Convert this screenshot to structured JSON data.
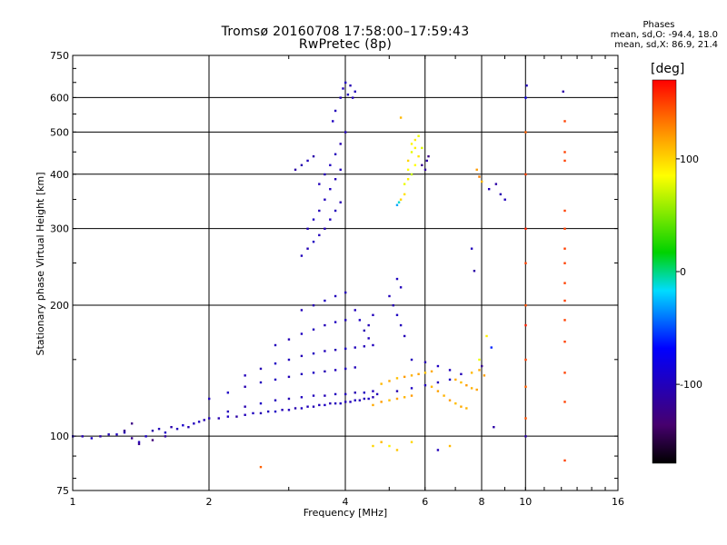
{
  "header": {
    "title_line1": "Tromsø 20160708 17:58:00–17:59:43",
    "title_line2": "RwPretec (8p)"
  },
  "phases": {
    "heading": "Phases",
    "o_line": "mean, sd,O: -94.4, 18.0",
    "x_line": "mean, sd,X:  86.9, 21.4"
  },
  "colorbar": {
    "title": "[deg]",
    "ticks": [
      "100",
      "0",
      "-100"
    ]
  },
  "colors": {
    "grid": "#000000",
    "axis": "#000000"
  },
  "chart_data": {
    "type": "scatter",
    "title": "Tromsø 20160708 17:58:00–17:59:43",
    "subtitle": "RwPretec (8p)",
    "xlabel": "Frequency [MHz]",
    "ylabel": "Stationary phase Virtual Height [km]",
    "xscale": "log",
    "yscale": "log",
    "xlim": [
      1,
      16
    ],
    "ylim": [
      75,
      750
    ],
    "xticks": [
      1,
      2,
      4,
      6,
      8,
      10,
      16
    ],
    "yticks": [
      75,
      100,
      200,
      300,
      400,
      500,
      600,
      750
    ],
    "grid": true,
    "colorbar_range": [
      -170,
      170
    ],
    "points": [
      [
        1.0,
        100,
        -100
      ],
      [
        1.05,
        100,
        -105
      ],
      [
        1.1,
        99,
        -95
      ],
      [
        1.15,
        100,
        -110
      ],
      [
        1.2,
        101,
        -100
      ],
      [
        1.25,
        101,
        -98
      ],
      [
        1.3,
        102,
        -105
      ],
      [
        1.35,
        99,
        -120
      ],
      [
        1.4,
        97,
        -100
      ],
      [
        1.45,
        100,
        -95
      ],
      [
        1.5,
        103,
        -110
      ],
      [
        1.55,
        104,
        -100
      ],
      [
        1.6,
        102,
        -95
      ],
      [
        1.65,
        105,
        -108
      ],
      [
        1.7,
        104,
        -100
      ],
      [
        1.75,
        106,
        -92
      ],
      [
        1.8,
        105,
        -105
      ],
      [
        1.85,
        107,
        -100
      ],
      [
        1.9,
        108,
        -97
      ],
      [
        1.95,
        109,
        -103
      ],
      [
        2.0,
        110,
        -100
      ],
      [
        2.1,
        110,
        -105
      ],
      [
        2.2,
        111,
        -95
      ],
      [
        2.3,
        111,
        -110
      ],
      [
        2.4,
        112,
        -100
      ],
      [
        2.5,
        113,
        -98
      ],
      [
        2.6,
        113,
        -104
      ],
      [
        2.7,
        114,
        -100
      ],
      [
        2.8,
        114,
        -96
      ],
      [
        2.9,
        115,
        -102
      ],
      [
        3.0,
        115,
        -100
      ],
      [
        3.1,
        116,
        -105
      ],
      [
        3.2,
        116,
        -98
      ],
      [
        3.3,
        117,
        -100
      ],
      [
        3.4,
        117,
        -103
      ],
      [
        3.5,
        118,
        -100
      ],
      [
        3.6,
        118,
        -96
      ],
      [
        3.7,
        119,
        -104
      ],
      [
        3.8,
        119,
        -100
      ],
      [
        3.9,
        119,
        -98
      ],
      [
        4.0,
        120,
        -102
      ],
      [
        4.1,
        120,
        -100
      ],
      [
        4.2,
        121,
        -97
      ],
      [
        4.3,
        121,
        -103
      ],
      [
        4.4,
        122,
        -100
      ],
      [
        4.5,
        122,
        -96
      ],
      [
        4.6,
        123,
        -105
      ],
      [
        2.2,
        114,
        -100
      ],
      [
        2.4,
        117,
        -105
      ],
      [
        2.6,
        119,
        -95
      ],
      [
        2.8,
        121,
        -100
      ],
      [
        3.0,
        122,
        -103
      ],
      [
        3.2,
        123,
        -98
      ],
      [
        3.4,
        124,
        -100
      ],
      [
        3.6,
        124,
        -102
      ],
      [
        3.8,
        125,
        -99
      ],
      [
        4.0,
        125,
        -100
      ],
      [
        4.2,
        126,
        -104
      ],
      [
        4.4,
        126,
        -97
      ],
      [
        4.6,
        127,
        -100
      ],
      [
        2.0,
        122,
        -100
      ],
      [
        2.2,
        126,
        -95
      ],
      [
        2.4,
        130,
        -105
      ],
      [
        2.6,
        133,
        -100
      ],
      [
        2.8,
        135,
        -98
      ],
      [
        3.0,
        137,
        -102
      ],
      [
        3.2,
        139,
        -100
      ],
      [
        3.4,
        140,
        -96
      ],
      [
        3.6,
        141,
        -103
      ],
      [
        3.8,
        142,
        -100
      ],
      [
        4.0,
        143,
        -99
      ],
      [
        4.2,
        144,
        -101
      ],
      [
        2.4,
        138,
        -100
      ],
      [
        2.6,
        143,
        -104
      ],
      [
        2.8,
        147,
        -96
      ],
      [
        3.0,
        150,
        -100
      ],
      [
        3.2,
        153,
        -102
      ],
      [
        3.4,
        155,
        -98
      ],
      [
        3.6,
        157,
        -100
      ],
      [
        3.8,
        158,
        -103
      ],
      [
        4.0,
        159,
        -97
      ],
      [
        4.2,
        160,
        -100
      ],
      [
        4.4,
        161,
        -101
      ],
      [
        2.8,
        162,
        -100
      ],
      [
        3.0,
        167,
        -103
      ],
      [
        3.2,
        172,
        -97
      ],
      [
        3.4,
        176,
        -100
      ],
      [
        3.6,
        180,
        -102
      ],
      [
        3.8,
        183,
        -98
      ],
      [
        4.0,
        185,
        -100
      ],
      [
        3.2,
        195,
        -100
      ],
      [
        3.4,
        200,
        -104
      ],
      [
        3.6,
        205,
        -97
      ],
      [
        3.8,
        210,
        -100
      ],
      [
        4.0,
        214,
        -102
      ],
      [
        3.2,
        260,
        -100
      ],
      [
        3.3,
        270,
        -103
      ],
      [
        3.4,
        280,
        -97
      ],
      [
        3.5,
        290,
        -100
      ],
      [
        3.6,
        300,
        -102
      ],
      [
        3.7,
        315,
        -98
      ],
      [
        3.8,
        330,
        -100
      ],
      [
        3.9,
        345,
        -104
      ],
      [
        3.3,
        300,
        -100
      ],
      [
        3.4,
        315,
        -96
      ],
      [
        3.5,
        330,
        -102
      ],
      [
        3.6,
        350,
        -100
      ],
      [
        3.7,
        370,
        -98
      ],
      [
        3.8,
        390,
        -103
      ],
      [
        3.9,
        410,
        -100
      ],
      [
        3.5,
        380,
        -100
      ],
      [
        3.6,
        400,
        -102
      ],
      [
        3.7,
        420,
        -98
      ],
      [
        3.8,
        445,
        -100
      ],
      [
        3.9,
        470,
        -104
      ],
      [
        4.0,
        500,
        -100
      ],
      [
        3.75,
        530,
        -97
      ],
      [
        3.8,
        560,
        -100
      ],
      [
        3.9,
        600,
        -102
      ],
      [
        3.95,
        630,
        -100
      ],
      [
        4.0,
        650,
        -98
      ],
      [
        4.1,
        640,
        -103
      ],
      [
        4.2,
        620,
        -100
      ],
      [
        4.15,
        600,
        -100
      ],
      [
        4.05,
        610,
        -99
      ],
      [
        3.1,
        410,
        -110
      ],
      [
        3.2,
        420,
        -105
      ],
      [
        3.3,
        430,
        -100
      ],
      [
        3.4,
        440,
        -108
      ],
      [
        4.2,
        195,
        -100
      ],
      [
        4.3,
        185,
        -96
      ],
      [
        4.4,
        175,
        -104
      ],
      [
        4.5,
        168,
        -100
      ],
      [
        4.6,
        162,
        -98
      ],
      [
        4.5,
        180,
        -102
      ],
      [
        4.6,
        190,
        -100
      ],
      [
        5.0,
        210,
        -100
      ],
      [
        5.1,
        200,
        -104
      ],
      [
        5.2,
        190,
        -96
      ],
      [
        5.3,
        180,
        -100
      ],
      [
        5.4,
        170,
        -102
      ],
      [
        5.2,
        230,
        -98
      ],
      [
        5.3,
        220,
        -100
      ],
      [
        4.8,
        132,
        110
      ],
      [
        5.0,
        134,
        115
      ],
      [
        5.2,
        136,
        108
      ],
      [
        5.4,
        137,
        120
      ],
      [
        5.6,
        138,
        112
      ],
      [
        5.8,
        139,
        118
      ],
      [
        6.0,
        140,
        105
      ],
      [
        6.2,
        141,
        115
      ],
      [
        4.6,
        118,
        115
      ],
      [
        4.8,
        120,
        120
      ],
      [
        5.0,
        121,
        108
      ],
      [
        5.2,
        122,
        118
      ],
      [
        5.4,
        123,
        112
      ],
      [
        5.6,
        124,
        120
      ],
      [
        6.2,
        130,
        110
      ],
      [
        6.4,
        127,
        118
      ],
      [
        6.6,
        124,
        112
      ],
      [
        6.8,
        121,
        120
      ],
      [
        7.0,
        119,
        108
      ],
      [
        7.2,
        117,
        115
      ],
      [
        7.4,
        116,
        112
      ],
      [
        7.0,
        135,
        115
      ],
      [
        7.2,
        133,
        108
      ],
      [
        7.4,
        131,
        120
      ],
      [
        7.6,
        129,
        112
      ],
      [
        7.8,
        128,
        118
      ],
      [
        7.6,
        140,
        110
      ],
      [
        7.9,
        142,
        115
      ],
      [
        8.1,
        138,
        120
      ],
      [
        4.7,
        125,
        -100
      ],
      [
        5.2,
        127,
        -104
      ],
      [
        5.6,
        129,
        -96
      ],
      [
        6.0,
        131,
        -100
      ],
      [
        6.4,
        133,
        -102
      ],
      [
        6.8,
        135,
        -98
      ],
      [
        5.6,
        150,
        -100
      ],
      [
        6.0,
        148,
        -104
      ],
      [
        6.4,
        145,
        -96
      ],
      [
        6.8,
        142,
        -100
      ],
      [
        7.2,
        139,
        -102
      ],
      [
        5.4,
        380,
        80
      ],
      [
        5.5,
        390,
        90
      ],
      [
        5.6,
        400,
        70
      ],
      [
        5.7,
        420,
        85
      ],
      [
        5.8,
        440,
        95
      ],
      [
        5.9,
        460,
        75
      ],
      [
        5.6,
        470,
        88
      ],
      [
        5.7,
        480,
        92
      ],
      [
        5.8,
        490,
        80
      ],
      [
        5.5,
        430,
        100
      ],
      [
        5.6,
        450,
        78
      ],
      [
        5.7,
        460,
        90
      ],
      [
        5.5,
        410,
        85
      ],
      [
        5.4,
        360,
        95
      ],
      [
        5.3,
        350,
        100
      ],
      [
        5.2,
        340,
        -30
      ],
      [
        5.25,
        345,
        -10
      ],
      [
        5.3,
        540,
        110
      ],
      [
        5.9,
        420,
        -120
      ],
      [
        6.0,
        410,
        -115
      ],
      [
        6.05,
        430,
        -110
      ],
      [
        6.1,
        440,
        -125
      ],
      [
        7.8,
        410,
        120
      ],
      [
        7.9,
        395,
        130
      ],
      [
        8.0,
        385,
        110
      ],
      [
        8.3,
        370,
        -100
      ],
      [
        8.6,
        380,
        -110
      ],
      [
        8.8,
        360,
        -105
      ],
      [
        9.0,
        350,
        -100
      ],
      [
        7.6,
        270,
        -100
      ],
      [
        7.7,
        240,
        -110
      ],
      [
        7.9,
        150,
        80
      ],
      [
        8.0,
        145,
        -120
      ],
      [
        8.2,
        170,
        90
      ],
      [
        8.4,
        160,
        -60
      ],
      [
        10.0,
        600,
        -80
      ],
      [
        10.0,
        500,
        140
      ],
      [
        10.0,
        400,
        150
      ],
      [
        10.0,
        300,
        160
      ],
      [
        10.0,
        250,
        150
      ],
      [
        10.0,
        200,
        145
      ],
      [
        10.0,
        180,
        160
      ],
      [
        10.0,
        150,
        150
      ],
      [
        10.0,
        130,
        140
      ],
      [
        10.0,
        110,
        145
      ],
      [
        10.0,
        100,
        -110
      ],
      [
        10.05,
        640,
        -100
      ],
      [
        12.1,
        620,
        -110
      ],
      [
        12.2,
        530,
        150
      ],
      [
        12.2,
        450,
        150
      ],
      [
        12.2,
        430,
        150
      ],
      [
        12.2,
        330,
        150
      ],
      [
        12.2,
        300,
        150
      ],
      [
        12.2,
        270,
        150
      ],
      [
        12.2,
        250,
        150
      ],
      [
        12.2,
        225,
        150
      ],
      [
        12.2,
        205,
        150
      ],
      [
        12.2,
        185,
        150
      ],
      [
        12.2,
        165,
        150
      ],
      [
        12.2,
        140,
        150
      ],
      [
        12.2,
        120,
        150
      ],
      [
        12.2,
        88,
        150
      ],
      [
        4.6,
        95,
        100
      ],
      [
        4.8,
        97,
        110
      ],
      [
        5.0,
        95,
        90
      ],
      [
        5.2,
        93,
        105
      ],
      [
        5.6,
        97,
        100
      ],
      [
        6.4,
        93,
        -100
      ],
      [
        6.8,
        95,
        110
      ],
      [
        8.5,
        105,
        -110
      ],
      [
        2.6,
        85,
        140
      ],
      [
        1.4,
        96,
        -120
      ],
      [
        1.5,
        98,
        -130
      ],
      [
        1.6,
        100,
        -115
      ],
      [
        1.3,
        103,
        -120
      ],
      [
        1.35,
        107,
        -125
      ]
    ]
  }
}
